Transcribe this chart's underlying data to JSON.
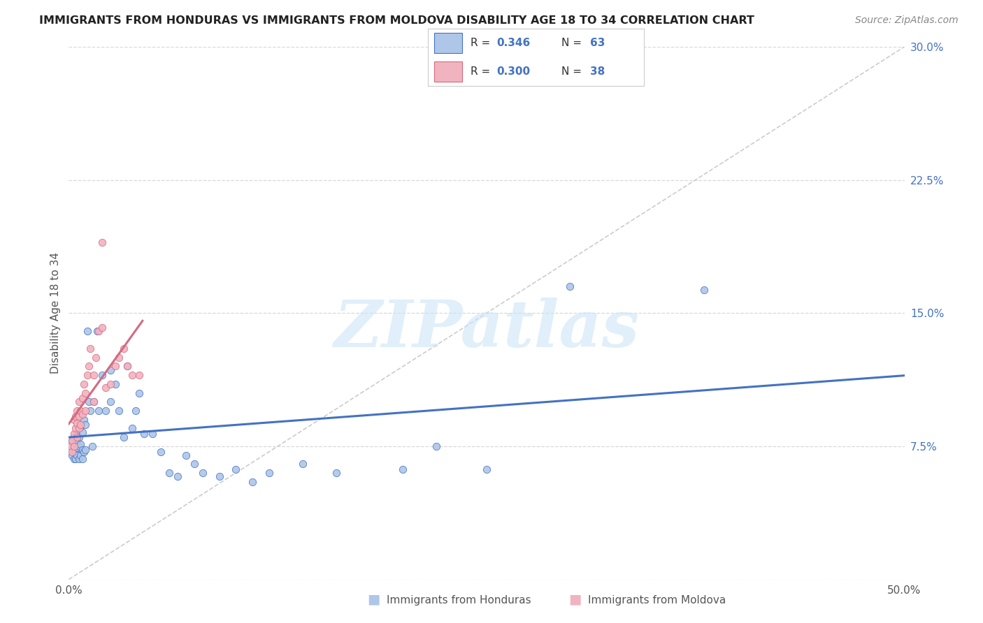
{
  "title": "IMMIGRANTS FROM HONDURAS VS IMMIGRANTS FROM MOLDOVA DISABILITY AGE 18 TO 34 CORRELATION CHART",
  "source": "Source: ZipAtlas.com",
  "ylabel": "Disability Age 18 to 34",
  "xlim": [
    0.0,
    0.5
  ],
  "ylim": [
    0.0,
    0.3
  ],
  "xticks": [
    0.0,
    0.1,
    0.2,
    0.3,
    0.4,
    0.5
  ],
  "yticks": [
    0.0,
    0.075,
    0.15,
    0.225,
    0.3
  ],
  "xticklabels": [
    "0.0%",
    "",
    "",
    "",
    "",
    "50.0%"
  ],
  "yticklabels": [
    "",
    "7.5%",
    "15.0%",
    "22.5%",
    "30.0%"
  ],
  "legend_labels": [
    "Immigrants from Honduras",
    "Immigrants from Moldova"
  ],
  "r_honduras": 0.346,
  "n_honduras": 63,
  "r_moldova": 0.3,
  "n_moldova": 38,
  "color_honduras": "#aec6e8",
  "color_moldova": "#f2b3c0",
  "line_color_honduras": "#4472c4",
  "line_color_moldova": "#d46a80",
  "diag_color": "#cccccc",
  "background_color": "#ffffff",
  "grid_color": "#d8d8d8",
  "honduras_x": [
    0.001,
    0.002,
    0.002,
    0.003,
    0.003,
    0.003,
    0.004,
    0.004,
    0.004,
    0.005,
    0.005,
    0.005,
    0.005,
    0.006,
    0.006,
    0.006,
    0.007,
    0.007,
    0.007,
    0.008,
    0.008,
    0.008,
    0.009,
    0.009,
    0.01,
    0.01,
    0.011,
    0.012,
    0.013,
    0.014,
    0.015,
    0.017,
    0.018,
    0.02,
    0.022,
    0.025,
    0.025,
    0.028,
    0.03,
    0.033,
    0.035,
    0.038,
    0.04,
    0.042,
    0.045,
    0.05,
    0.055,
    0.06,
    0.065,
    0.07,
    0.075,
    0.08,
    0.09,
    0.1,
    0.11,
    0.12,
    0.14,
    0.16,
    0.2,
    0.22,
    0.25,
    0.3,
    0.38
  ],
  "honduras_y": [
    0.075,
    0.078,
    0.07,
    0.08,
    0.073,
    0.068,
    0.075,
    0.072,
    0.068,
    0.082,
    0.078,
    0.074,
    0.07,
    0.08,
    0.075,
    0.068,
    0.086,
    0.076,
    0.07,
    0.083,
    0.073,
    0.068,
    0.09,
    0.072,
    0.087,
    0.073,
    0.14,
    0.1,
    0.095,
    0.075,
    0.1,
    0.14,
    0.095,
    0.115,
    0.095,
    0.118,
    0.1,
    0.11,
    0.095,
    0.08,
    0.12,
    0.085,
    0.095,
    0.105,
    0.082,
    0.082,
    0.072,
    0.06,
    0.058,
    0.07,
    0.065,
    0.06,
    0.058,
    0.062,
    0.055,
    0.06,
    0.065,
    0.06,
    0.062,
    0.075,
    0.062,
    0.165,
    0.163
  ],
  "moldova_x": [
    0.001,
    0.002,
    0.002,
    0.003,
    0.003,
    0.003,
    0.004,
    0.004,
    0.005,
    0.005,
    0.005,
    0.006,
    0.006,
    0.006,
    0.007,
    0.007,
    0.008,
    0.008,
    0.009,
    0.01,
    0.01,
    0.011,
    0.012,
    0.013,
    0.015,
    0.015,
    0.016,
    0.018,
    0.02,
    0.022,
    0.025,
    0.028,
    0.03,
    0.033,
    0.035,
    0.038,
    0.042,
    0.02
  ],
  "moldova_y": [
    0.075,
    0.078,
    0.072,
    0.09,
    0.082,
    0.075,
    0.092,
    0.085,
    0.095,
    0.088,
    0.08,
    0.1,
    0.092,
    0.085,
    0.095,
    0.087,
    0.102,
    0.093,
    0.11,
    0.105,
    0.095,
    0.115,
    0.12,
    0.13,
    0.115,
    0.1,
    0.125,
    0.14,
    0.142,
    0.108,
    0.11,
    0.12,
    0.125,
    0.13,
    0.12,
    0.115,
    0.115,
    0.19
  ],
  "watermark_text": "ZIPatlas",
  "watermark_color": "#cce5f5",
  "watermark_alpha": 0.6
}
